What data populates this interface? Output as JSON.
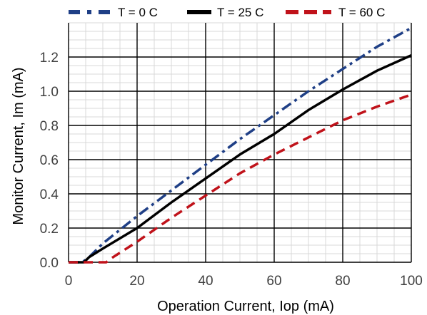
{
  "chart_data": {
    "type": "line",
    "title": "",
    "xlabel": "Operation Current, Iop (mA)",
    "ylabel": "Monitor Current, Im (mA)",
    "xlim": [
      0,
      100
    ],
    "ylim": [
      0,
      1.4
    ],
    "x_major_ticks": [
      0,
      20,
      40,
      60,
      80,
      100
    ],
    "y_major_ticks": [
      0.0,
      0.2,
      0.4,
      0.6,
      0.8,
      1.0,
      1.2
    ],
    "x_tick_labels": [
      "0",
      "20",
      "40",
      "60",
      "80",
      "100"
    ],
    "y_tick_labels": [
      "0.0",
      "0.2",
      "0.4",
      "0.6",
      "0.8",
      "1.0",
      "1.2"
    ],
    "grid": "major and minor",
    "legend_position": "top",
    "series": [
      {
        "name": "T = 0 C",
        "color": "#1f3f86",
        "dash": "dash-dot",
        "points": [
          [
            0,
            0
          ],
          [
            4,
            0
          ],
          [
            6,
            0.03
          ],
          [
            10,
            0.11
          ],
          [
            20,
            0.27
          ],
          [
            30,
            0.42
          ],
          [
            40,
            0.57
          ],
          [
            50,
            0.72
          ],
          [
            60,
            0.86
          ],
          [
            70,
            1.0
          ],
          [
            80,
            1.13
          ],
          [
            90,
            1.26
          ],
          [
            100,
            1.37
          ]
        ]
      },
      {
        "name": "T = 25 C",
        "color": "#000000",
        "dash": "solid",
        "points": [
          [
            0,
            0
          ],
          [
            4.5,
            0
          ],
          [
            6,
            0.03
          ],
          [
            10,
            0.08
          ],
          [
            20,
            0.2
          ],
          [
            30,
            0.35
          ],
          [
            40,
            0.49
          ],
          [
            50,
            0.63
          ],
          [
            60,
            0.75
          ],
          [
            70,
            0.89
          ],
          [
            80,
            1.01
          ],
          [
            90,
            1.12
          ],
          [
            100,
            1.21
          ]
        ]
      },
      {
        "name": "T = 60 C",
        "color": "#c0121a",
        "dash": "dashed",
        "points": [
          [
            0,
            0
          ],
          [
            11,
            0
          ],
          [
            13,
            0.03
          ],
          [
            20,
            0.12
          ],
          [
            30,
            0.26
          ],
          [
            40,
            0.39
          ],
          [
            50,
            0.52
          ],
          [
            60,
            0.63
          ],
          [
            70,
            0.73
          ],
          [
            80,
            0.83
          ],
          [
            90,
            0.91
          ],
          [
            100,
            0.98
          ]
        ]
      }
    ]
  }
}
